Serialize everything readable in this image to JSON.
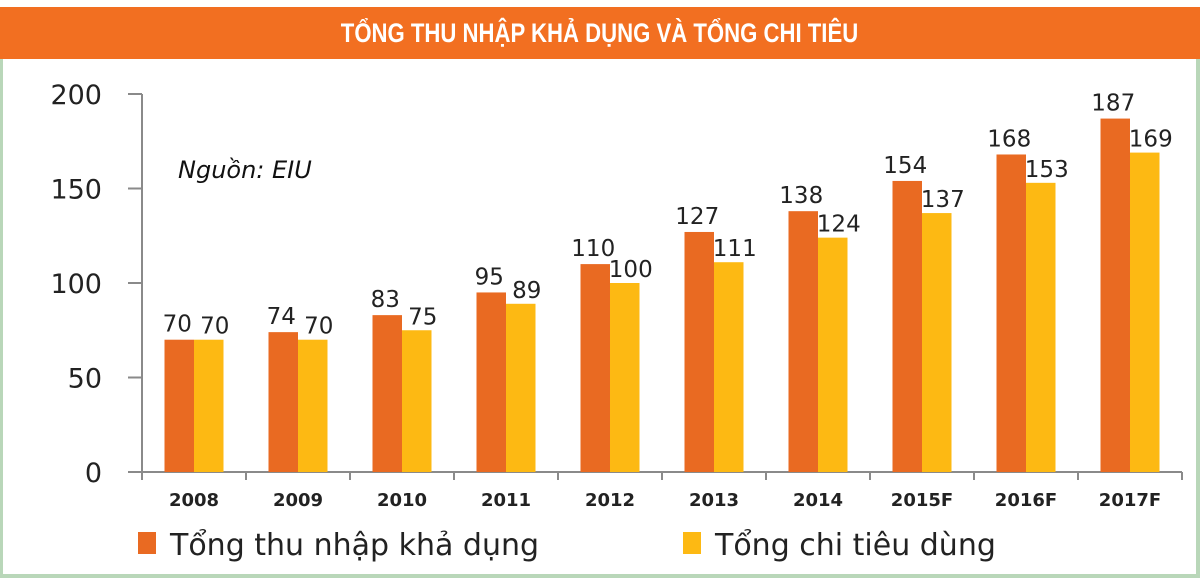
{
  "header": {
    "title": "TỔNG THU NHẬP KHẢ DỤNG VÀ TỔNG CHI TIÊU"
  },
  "source_note": "Nguồn:  EIU",
  "colors": {
    "title_bg": "#f26f21",
    "series_income": "#e96a22",
    "series_spending": "#fdb913",
    "frame": "#b9d7b9",
    "axis": "#8a8a8a"
  },
  "chart_data": {
    "type": "bar",
    "title": "TỔNG THU NHẬP KHẢ DỤNG VÀ TỔNG CHI TIÊU",
    "xlabel": "",
    "ylabel": "",
    "ylim": [
      0,
      200
    ],
    "yticks": [
      0,
      50,
      100,
      150,
      200
    ],
    "grid": false,
    "legend_position": "bottom",
    "categories": [
      "2008",
      "2009",
      "2010",
      "2011",
      "2012",
      "2013",
      "2014",
      "2015F",
      "2016F",
      "2017F"
    ],
    "series": [
      {
        "name": "Tổng thu nhập khả dụng",
        "color": "#e96a22",
        "values": [
          70,
          74,
          83,
          95,
          110,
          127,
          138,
          154,
          168,
          187
        ]
      },
      {
        "name": "Tổng chi tiêu dùng",
        "color": "#fdb913",
        "values": [
          70,
          70,
          75,
          89,
          100,
          111,
          124,
          137,
          153,
          169
        ]
      }
    ],
    "annotations": [
      "Nguồn:  EIU"
    ]
  },
  "legend": {
    "items": [
      {
        "label": "Tổng thu nhập khả dụng",
        "color": "#e96a22"
      },
      {
        "label": "Tổng chi tiêu dùng",
        "color": "#fdb913"
      }
    ]
  }
}
